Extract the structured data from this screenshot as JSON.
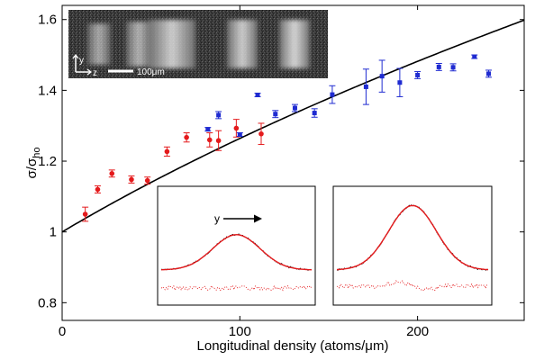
{
  "chart_data": {
    "type": "scatter",
    "xlabel": "Longitudinal density (atoms/μm)",
    "ylabel_main": "σ/σ",
    "ylabel_sub": "ho",
    "xlim": [
      0,
      260
    ],
    "ylim": [
      0.75,
      1.64
    ],
    "xticks": [
      0,
      100,
      200
    ],
    "yticks": [
      0.8,
      1,
      1.2,
      1.4,
      1.6
    ],
    "ytick_labels": [
      "0.8",
      "1",
      "1.2",
      "1.4",
      "1.6"
    ],
    "grid": false,
    "series": [
      {
        "color": "#e41a1c",
        "marker": "circle",
        "x": [
          13,
          20,
          28,
          39,
          48,
          59,
          70,
          83,
          88,
          98,
          112
        ],
        "y": [
          1.05,
          1.12,
          1.165,
          1.148,
          1.145,
          1.227,
          1.267,
          1.26,
          1.258,
          1.293,
          1.277
        ],
        "err": [
          0.02,
          0.01,
          0.01,
          0.01,
          0.01,
          0.013,
          0.013,
          0.02,
          0.028,
          0.025,
          0.03
        ]
      },
      {
        "color": "#1f2bd1",
        "marker": "square",
        "x": [
          82,
          88,
          100,
          110,
          120,
          131,
          142,
          152,
          171,
          180,
          190,
          200,
          212,
          220,
          232,
          240
        ],
        "y": [
          1.29,
          1.33,
          1.275,
          1.387,
          1.333,
          1.35,
          1.336,
          1.388,
          1.41,
          1.44,
          1.422,
          1.443,
          1.466,
          1.465,
          1.495,
          1.447
        ],
        "err": [
          0.005,
          0.01,
          0.005,
          0.005,
          0.01,
          0.01,
          0.012,
          0.025,
          0.05,
          0.045,
          0.04,
          0.01,
          0.01,
          0.01,
          0.005,
          0.01
        ]
      }
    ],
    "fit_curve": {
      "color": "#000000",
      "formula": "sqrt(1 + a*x)",
      "a": 0.00598
    },
    "image_inset": {
      "scale_bar_label": "100μm",
      "axis_labels": [
        "y",
        "z"
      ]
    },
    "profile_insets": [
      {
        "arrow_label": "y",
        "peak_height": 0.48
      },
      {
        "arrow_label": "",
        "peak_height": 0.85
      }
    ]
  }
}
